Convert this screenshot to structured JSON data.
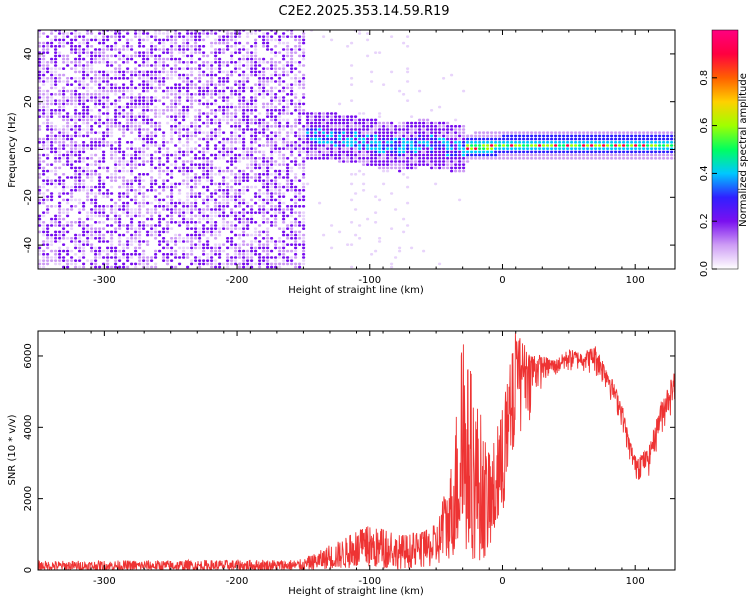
{
  "title": "C2E2.2025.353.14.59.R19",
  "chart_data": [
    {
      "type": "heatmap",
      "xlabel": "Height of straight line (km)",
      "ylabel": "Frequency (Hz)",
      "xlim": [
        -350,
        130
      ],
      "ylim": [
        -50,
        50
      ],
      "xticks": [
        -300,
        -200,
        -100,
        0,
        100
      ],
      "yticks": [
        -40,
        -20,
        0,
        20,
        40
      ],
      "colorbar": {
        "label": "Normalized spectral amplitude",
        "range": [
          0,
          1
        ],
        "ticks": [
          "0.0",
          "0.2",
          "0.4",
          "0.6",
          "0.8"
        ],
        "colors": [
          "#ffffff",
          "#ce9df5",
          "#7a10f0",
          "#3020ff",
          "#00c8ff",
          "#00ff60",
          "#a0ff00",
          "#ffd000",
          "#ff6000",
          "#ff0040",
          "#ff0080"
        ]
      },
      "ridge": [
        {
          "x": -145,
          "f": 5
        },
        {
          "x": -120,
          "f": 4
        },
        {
          "x": -100,
          "f": 2
        },
        {
          "x": -80,
          "f": 0
        },
        {
          "x": -60,
          "f": 2
        },
        {
          "x": -40,
          "f": 0
        },
        {
          "x": -30,
          "f": 0
        },
        {
          "x": 0,
          "f": 1
        },
        {
          "x": 50,
          "f": 1
        },
        {
          "x": 100,
          "f": 1
        },
        {
          "x": 130,
          "f": 1
        }
      ]
    },
    {
      "type": "line",
      "xlabel": "Height of straight line (km)",
      "ylabel": "SNR (10 * v/v)",
      "xlim": [
        -350,
        130
      ],
      "ylim": [
        0,
        6700
      ],
      "xticks": [
        -300,
        -200,
        -100,
        0,
        100
      ],
      "yticks": [
        0,
        2000,
        4000,
        6000
      ],
      "color": "#ee3333",
      "envelope": {
        "x": [
          -350,
          -150,
          -130,
          -100,
          -80,
          -60,
          -50,
          -40,
          -30,
          -20,
          -10,
          0,
          10,
          20,
          30,
          40,
          50,
          60,
          70,
          80,
          90,
          95,
          100,
          110,
          120,
          130
        ],
        "upper": [
          260,
          300,
          700,
          1250,
          1000,
          1050,
          1300,
          2600,
          6400,
          5000,
          3200,
          4500,
          6700,
          6200,
          6000,
          5900,
          6200,
          6100,
          6300,
          5600,
          4700,
          3800,
          3200,
          3400,
          4800,
          5600
        ],
        "lower": [
          0,
          0,
          30,
          50,
          30,
          60,
          100,
          300,
          500,
          200,
          400,
          1500,
          3500,
          4000,
          5100,
          5300,
          5400,
          5500,
          5300,
          4800,
          3900,
          3000,
          2400,
          2500,
          3600,
          4500
        ]
      }
    }
  ]
}
